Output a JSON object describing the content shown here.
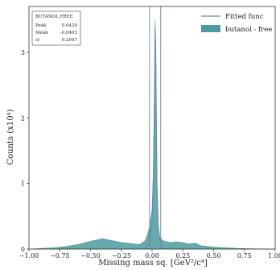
{
  "chart_data": {
    "type": "area",
    "xlabel": "Missing mass sq. [GeV²/c⁴]",
    "ylabel": "Counts (x10⁴)",
    "xlim": [
      -1.0,
      1.0
    ],
    "ylim": [
      0,
      3.7
    ],
    "xticks": [
      "−1.00",
      "−0.75",
      "−0.50",
      "−0.25",
      "0.00",
      "0.25",
      "0.50",
      "0.75",
      "1.00"
    ],
    "xtick_values": [
      -1.0,
      -0.75,
      -0.5,
      -0.25,
      0.0,
      0.25,
      0.5,
      0.75,
      1.0
    ],
    "yticks": [
      "0",
      "1",
      "2",
      "3"
    ],
    "ytick_values": [
      0,
      1,
      2,
      3
    ],
    "vlines": [
      -0.02,
      0.07
    ],
    "grid": false,
    "legend_position": "top-right",
    "series": [
      {
        "name": "butanol - free",
        "kind": "histogram",
        "color": "#4d9a9c",
        "x": [
          -1.0,
          -0.9,
          -0.8,
          -0.7,
          -0.6,
          -0.5,
          -0.45,
          -0.4,
          -0.35,
          -0.3,
          -0.25,
          -0.2,
          -0.15,
          -0.1,
          -0.06,
          -0.04,
          -0.02,
          0.0,
          0.01,
          0.02,
          0.025,
          0.03,
          0.035,
          0.04,
          0.05,
          0.06,
          0.08,
          0.1,
          0.15,
          0.2,
          0.25,
          0.3,
          0.35,
          0.4,
          0.5,
          0.6,
          0.7,
          0.8,
          0.9,
          1.0
        ],
        "values": [
          0.0,
          0.01,
          0.02,
          0.04,
          0.07,
          0.12,
          0.14,
          0.16,
          0.14,
          0.12,
          0.1,
          0.09,
          0.08,
          0.07,
          0.12,
          0.2,
          0.35,
          0.6,
          1.2,
          2.5,
          3.5,
          3.1,
          2.0,
          1.0,
          0.4,
          0.2,
          0.14,
          0.12,
          0.1,
          0.11,
          0.1,
          0.08,
          0.09,
          0.05,
          0.03,
          0.02,
          0.01,
          0.005,
          0.002,
          0.0
        ]
      },
      {
        "name": "Fitted func",
        "kind": "line",
        "color": "#6b88ad",
        "x": [
          -0.06,
          -0.02,
          0.0,
          0.01,
          0.02,
          0.025,
          0.03,
          0.035,
          0.04,
          0.05,
          0.07,
          0.1
        ],
        "values": [
          0.0,
          0.1,
          0.4,
          1.0,
          2.4,
          3.4,
          3.0,
          2.0,
          1.0,
          0.35,
          0.05,
          0.0
        ]
      }
    ],
    "stats_box": {
      "title": "BUTANOL FREE",
      "rows": [
        {
          "label": "Peak",
          "value": "0.0420"
        },
        {
          "label": "Mean",
          "value": "-0.0403"
        },
        {
          "label": "sf",
          "value": "0.2047"
        }
      ]
    }
  }
}
